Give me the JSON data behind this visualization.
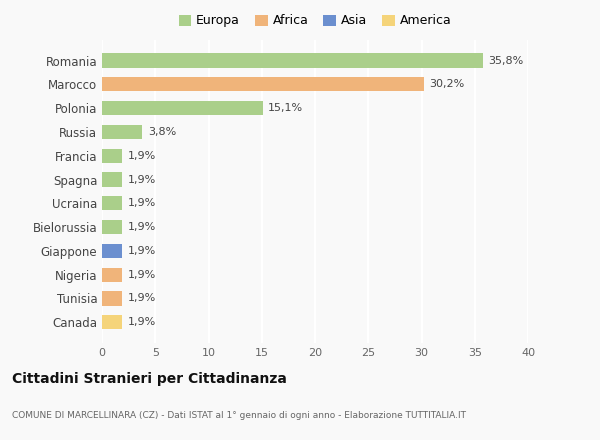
{
  "countries": [
    "Romania",
    "Marocco",
    "Polonia",
    "Russia",
    "Francia",
    "Spagna",
    "Ucraina",
    "Bielorussia",
    "Giappone",
    "Nigeria",
    "Tunisia",
    "Canada"
  ],
  "values": [
    35.8,
    30.2,
    15.1,
    3.8,
    1.9,
    1.9,
    1.9,
    1.9,
    1.9,
    1.9,
    1.9,
    1.9
  ],
  "labels": [
    "35,8%",
    "30,2%",
    "15,1%",
    "3,8%",
    "1,9%",
    "1,9%",
    "1,9%",
    "1,9%",
    "1,9%",
    "1,9%",
    "1,9%",
    "1,9%"
  ],
  "colors": [
    "#aacf8a",
    "#f0b47a",
    "#aacf8a",
    "#aacf8a",
    "#aacf8a",
    "#aacf8a",
    "#aacf8a",
    "#aacf8a",
    "#6b8fcf",
    "#f0b47a",
    "#f0b47a",
    "#f5d47a"
  ],
  "legend_labels": [
    "Europa",
    "Africa",
    "Asia",
    "America"
  ],
  "legend_colors": [
    "#aacf8a",
    "#f0b47a",
    "#6b8fcf",
    "#f5d47a"
  ],
  "xlim": [
    0,
    40
  ],
  "xticks": [
    0,
    5,
    10,
    15,
    20,
    25,
    30,
    35,
    40
  ],
  "title": "Cittadini Stranieri per Cittadinanza",
  "subtitle": "COMUNE DI MARCELLINARA (CZ) - Dati ISTAT al 1° gennaio di ogni anno - Elaborazione TUTTITALIA.IT",
  "bg_color": "#f9f9f9",
  "grid_color": "#ffffff",
  "bar_height": 0.6
}
